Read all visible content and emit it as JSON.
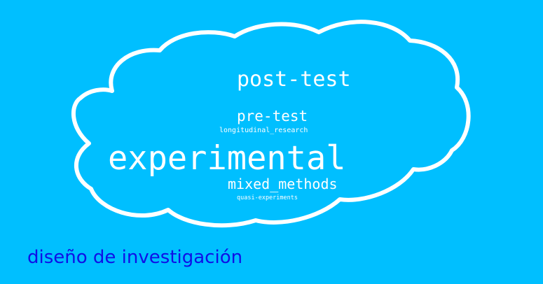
{
  "background_color": "#00BFFF",
  "cloud": {
    "outline_color": "#ffffff",
    "words": {
      "post_test": "post-test",
      "pre_test": "pre-test",
      "longitudinal_research": "longitudinal_research",
      "experimental": "experimental",
      "mixed_methods": "mixed_methods",
      "quasi_experiments": "quasi-experiments"
    }
  },
  "caption": {
    "text": "diseño de investigación",
    "color": "#1010E6"
  }
}
